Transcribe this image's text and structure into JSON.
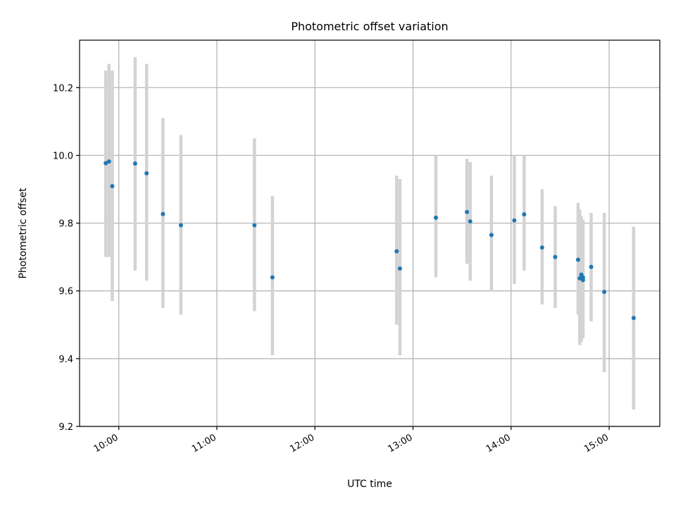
{
  "chart_data": {
    "type": "scatter",
    "title": "Photometric offset variation",
    "xlabel": "UTC time",
    "ylabel": "Photometric offset",
    "x_ticks": [
      "10:00",
      "11:00",
      "12:00",
      "13:00",
      "14:00",
      "15:00"
    ],
    "y_ticks": [
      "9.2",
      "9.4",
      "9.6",
      "9.8",
      "10.0",
      "10.2"
    ],
    "xlim": [
      "09:36",
      "15:31"
    ],
    "ylim": [
      9.2,
      10.34
    ],
    "grid": true,
    "colors": {
      "point": "#1f77b4",
      "errorbar": "#d3d3d3",
      "grid": "#b0b0b0"
    },
    "points": [
      {
        "time": "09:52",
        "offset": 9.977,
        "low": 9.7,
        "high": 10.25
      },
      {
        "time": "09:54",
        "offset": 9.982,
        "low": 9.7,
        "high": 10.27
      },
      {
        "time": "09:56",
        "offset": 9.909,
        "low": 9.57,
        "high": 10.25
      },
      {
        "time": "10:10",
        "offset": 9.976,
        "low": 9.66,
        "high": 10.29
      },
      {
        "time": "10:17",
        "offset": 9.947,
        "low": 9.63,
        "high": 10.27
      },
      {
        "time": "10:27",
        "offset": 9.827,
        "low": 9.55,
        "high": 10.11
      },
      {
        "time": "10:38",
        "offset": 9.794,
        "low": 9.53,
        "high": 10.06
      },
      {
        "time": "11:23",
        "offset": 9.794,
        "low": 9.54,
        "high": 10.05
      },
      {
        "time": "11:34",
        "offset": 9.64,
        "low": 9.41,
        "high": 9.88
      },
      {
        "time": "12:50",
        "offset": 9.717,
        "low": 9.5,
        "high": 9.94
      },
      {
        "time": "12:52",
        "offset": 9.666,
        "low": 9.41,
        "high": 9.93
      },
      {
        "time": "13:14",
        "offset": 9.816,
        "low": 9.64,
        "high": 10.0
      },
      {
        "time": "13:33",
        "offset": 9.833,
        "low": 9.68,
        "high": 9.99
      },
      {
        "time": "13:35",
        "offset": 9.805,
        "low": 9.63,
        "high": 9.98
      },
      {
        "time": "13:48",
        "offset": 9.765,
        "low": 9.6,
        "high": 9.94
      },
      {
        "time": "14:02",
        "offset": 9.808,
        "low": 9.62,
        "high": 10.0
      },
      {
        "time": "14:08",
        "offset": 9.826,
        "low": 9.66,
        "high": 10.0
      },
      {
        "time": "14:19",
        "offset": 9.728,
        "low": 9.56,
        "high": 9.9
      },
      {
        "time": "14:27",
        "offset": 9.7,
        "low": 9.55,
        "high": 9.85
      },
      {
        "time": "14:41",
        "offset": 9.692,
        "low": 9.53,
        "high": 9.86
      },
      {
        "time": "14:42",
        "offset": 9.637,
        "low": 9.44,
        "high": 9.84
      },
      {
        "time": "14:43",
        "offset": 9.648,
        "low": 9.45,
        "high": 9.82
      },
      {
        "time": "14:44",
        "offset": 9.632,
        "low": 9.46,
        "high": 9.81
      },
      {
        "time": "14:44",
        "offset": 9.64,
        "low": 9.47,
        "high": 9.81
      },
      {
        "time": "14:49",
        "offset": 9.671,
        "low": 9.51,
        "high": 9.83
      },
      {
        "time": "14:57",
        "offset": 9.597,
        "low": 9.36,
        "high": 9.83
      },
      {
        "time": "15:15",
        "offset": 9.52,
        "low": 9.25,
        "high": 9.79
      }
    ]
  }
}
